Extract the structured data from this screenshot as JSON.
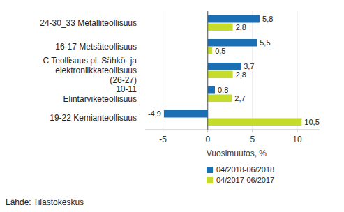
{
  "chart_data": {
    "type": "bar",
    "orientation": "horizontal",
    "categories": [
      "24-30_33 Metalliteollisuus",
      "16-17 Metsäteollisuus",
      "C Teollisuus pl. Sähkö- ja elektroniikkateollisuus (26-27)",
      "10-11 Elintarviketeollisuus",
      "19-22 Kemianteollisuus"
    ],
    "series": [
      {
        "name": "04/2018-06/2018",
        "color": "#1a6fb5",
        "values": [
          5.8,
          5.5,
          3.7,
          0.8,
          -4.9
        ],
        "value_labels": [
          "5,8",
          "5,5",
          "3,7",
          "0,8",
          "-4,9"
        ]
      },
      {
        "name": "04/2017-06/2017",
        "color": "#c5dc2a",
        "values": [
          2.8,
          0.5,
          2.8,
          2.7,
          10.5
        ],
        "value_labels": [
          "2,8",
          "0,5",
          "2,8",
          "2,7",
          "10,5"
        ]
      }
    ],
    "x_label": "Vuosimuutos, %",
    "xlim": [
      -7,
      12.5
    ],
    "xticks": [
      -5,
      0,
      5,
      10
    ],
    "grid": true,
    "data_labels": true,
    "legend": "bottom",
    "annotations": [
      "Lähde: Tilastokeskus"
    ]
  }
}
